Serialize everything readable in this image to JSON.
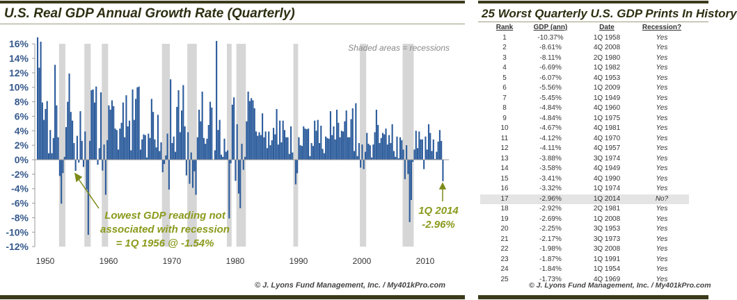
{
  "left_panel": {
    "title": "U.S. Real GDP Annual Growth Rate (Quarterly)",
    "credit": "© J. Lyons Fund Management, Inc. / My401kPro.com"
  },
  "right_panel": {
    "title": "25 Worst Quarterly U.S. GDP Prints In History",
    "credit": "© J. Lyons Fund Management, Inc. / My401kPro.com",
    "headers": [
      "Rank",
      "GDP (ann)",
      "Date",
      "Recession?"
    ],
    "rows": [
      [
        "1",
        "-10.37%",
        "1Q 1958",
        "Yes"
      ],
      [
        "2",
        "-8.61%",
        "4Q 2008",
        "Yes"
      ],
      [
        "3",
        "-8.11%",
        "2Q 1980",
        "Yes"
      ],
      [
        "4",
        "-6.69%",
        "1Q 1982",
        "Yes"
      ],
      [
        "5",
        "-6.07%",
        "4Q 1953",
        "Yes"
      ],
      [
        "6",
        "-5.56%",
        "1Q 2009",
        "Yes"
      ],
      [
        "7",
        "-5.45%",
        "1Q 1949",
        "Yes"
      ],
      [
        "8",
        "-4.84%",
        "4Q 1960",
        "Yes"
      ],
      [
        "9",
        "-4.84%",
        "1Q 1975",
        "Yes"
      ],
      [
        "10",
        "-4.67%",
        "4Q 1981",
        "Yes"
      ],
      [
        "11",
        "-4.12%",
        "4Q 1970",
        "Yes"
      ],
      [
        "12",
        "-4.11%",
        "4Q 1957",
        "Yes"
      ],
      [
        "13",
        "-3.88%",
        "3Q 1974",
        "Yes"
      ],
      [
        "14",
        "-3.58%",
        "4Q 1949",
        "Yes"
      ],
      [
        "15",
        "-3.41%",
        "4Q 1990",
        "Yes"
      ],
      [
        "16",
        "-3.32%",
        "1Q 1974",
        "Yes"
      ],
      [
        "17",
        "-2.96%",
        "1Q 2014",
        "No?"
      ],
      [
        "18",
        "-2.92%",
        "2Q 1981",
        "Yes"
      ],
      [
        "19",
        "-2.69%",
        "1Q 2008",
        "Yes"
      ],
      [
        "20",
        "-2.25%",
        "3Q 1953",
        "Yes"
      ],
      [
        "21",
        "-2.17%",
        "3Q 1973",
        "Yes"
      ],
      [
        "22",
        "-1.98%",
        "3Q 2008",
        "Yes"
      ],
      [
        "23",
        "-1.87%",
        "1Q 1991",
        "Yes"
      ],
      [
        "24",
        "-1.84%",
        "1Q 1954",
        "Yes"
      ],
      [
        "25",
        "-1.73%",
        "4Q 1969",
        "Yes"
      ]
    ],
    "highlight_rank": "17",
    "highlight_color": "#e4e4e4"
  },
  "chart_data": {
    "type": "bar",
    "title": "U.S. Real GDP Annual Growth Rate (Quarterly)",
    "x_start": "1Q 1950",
    "x_frequency": "quarterly",
    "xticks": [
      "1950",
      "1960",
      "1970",
      "1980",
      "1990",
      "2000",
      "2010"
    ],
    "yticks": [
      "16%",
      "14%",
      "12%",
      "10%",
      "8%",
      "6%",
      "4%",
      "2%",
      "0%",
      "-2%",
      "-4%",
      "-6%",
      "-8%",
      "-10%",
      "-12%"
    ],
    "ylim": [
      -12,
      16
    ],
    "values": [
      16.9,
      12.7,
      16.3,
      7.9,
      5.5,
      7.0,
      8.1,
      0.9,
      4.1,
      0.9,
      3.0,
      13.1,
      7.5,
      3.1,
      -2.25,
      -6.07,
      -1.84,
      0.4,
      4.5,
      8.0,
      11.9,
      6.6,
      5.4,
      2.3,
      -1.54,
      3.3,
      -0.4,
      6.7,
      2.6,
      -1.0,
      3.9,
      -4.11,
      -10.37,
      2.6,
      9.6,
      9.7,
      7.9,
      10.1,
      -0.7,
      1.6,
      9.3,
      -1.5,
      2.1,
      -4.84,
      2.7,
      7.5,
      6.9,
      8.2,
      7.4,
      4.3,
      4.1,
      1.4,
      4.3,
      5.1,
      7.9,
      3.1,
      8.9,
      4.6,
      5.4,
      1.3,
      9.7,
      5.5,
      8.4,
      10.0,
      10.1,
      1.4,
      2.8,
      3.5,
      3.4,
      0.3,
      3.6,
      3.0,
      8.4,
      6.6,
      2.8,
      1.7,
      6.2,
      1.2,
      2.4,
      -1.73,
      -0.6,
      0.6,
      3.6,
      -4.12,
      11.1,
      2.3,
      3.2,
      1.1,
      7.3,
      9.6,
      3.8,
      6.8,
      10.3,
      4.6,
      -2.17,
      3.8,
      -3.32,
      1.0,
      -3.88,
      -1.6,
      -4.84,
      3.1,
      6.9,
      5.3,
      9.4,
      3.0,
      2.2,
      2.9,
      4.8,
      8.0,
      7.2,
      0.0,
      1.3,
      16.4,
      4.1,
      5.5,
      0.7,
      0.4,
      2.9,
      1.1,
      1.3,
      -8.11,
      -0.5,
      7.6,
      8.6,
      -2.92,
      4.9,
      -4.67,
      -6.69,
      2.2,
      -1.4,
      0.4,
      5.3,
      9.4,
      8.1,
      8.5,
      8.2,
      7.1,
      3.9,
      3.3,
      3.8,
      3.4,
      6.4,
      3.1,
      3.9,
      1.6,
      3.9,
      2.0,
      2.7,
      4.4,
      3.5,
      7.0,
      2.1,
      5.4,
      2.4,
      5.4,
      4.1,
      3.1,
      3.1,
      0.8,
      4.6,
      1.0,
      0.0,
      -3.41,
      -1.87,
      3.1,
      2.0,
      1.9,
      4.6,
      4.3,
      4.2,
      4.3,
      0.5,
      2.3,
      1.9,
      5.4,
      4.0,
      5.5,
      2.3,
      4.7,
      1.5,
      0.9,
      3.2,
      3.0,
      2.9,
      6.7,
      3.4,
      4.6,
      2.8,
      6.9,
      5.1,
      3.1,
      4.0,
      3.9,
      5.3,
      6.8,
      3.1,
      3.1,
      5.6,
      7.1,
      1.2,
      7.8,
      0.5,
      2.3,
      -1.1,
      2.1,
      -1.3,
      1.1,
      3.7,
      2.2,
      2.0,
      0.3,
      2.1,
      3.8,
      6.9,
      4.8,
      2.3,
      3.0,
      3.7,
      3.5,
      4.3,
      2.1,
      3.4,
      2.3,
      4.9,
      1.2,
      0.4,
      3.2,
      0.2,
      3.1,
      2.7,
      1.4,
      -2.69,
      2.0,
      -1.98,
      -8.61,
      -5.56,
      -0.3,
      1.4,
      4.0,
      1.6,
      3.9,
      2.8,
      2.8,
      -1.3,
      3.2,
      1.4,
      4.9,
      3.7,
      1.2,
      2.8,
      0.1,
      1.1,
      2.5,
      4.1,
      2.6,
      -2.96
    ],
    "recessions": [
      [
        "3Q 1953",
        "2Q 1954"
      ],
      [
        "3Q 1957",
        "2Q 1958"
      ],
      [
        "2Q 1960",
        "1Q 1961"
      ],
      [
        "4Q 1969",
        "4Q 1970"
      ],
      [
        "4Q 1973",
        "1Q 1975"
      ],
      [
        "1Q 1980",
        "3Q 1980"
      ],
      [
        "3Q 1981",
        "4Q 1982"
      ],
      [
        "3Q 1990",
        "1Q 1991"
      ],
      [
        "1Q 2001",
        "4Q 2001"
      ],
      [
        "4Q 2007",
        "2Q 2009"
      ]
    ],
    "annotations": {
      "legend_note": "Shaded areas = recessions",
      "lowest_non_recession": [
        "Lowest GDP reading not",
        "associated with recession",
        "= 1Q 1956 @ -1.54%"
      ],
      "latest": [
        "1Q 2014",
        "-2.96%"
      ]
    },
    "grid": false,
    "colors": {
      "bar": "#2b5b9b",
      "recession": "#d6d6d6",
      "axis_label": "#36598c",
      "annotation": "#8b9a1c"
    }
  }
}
